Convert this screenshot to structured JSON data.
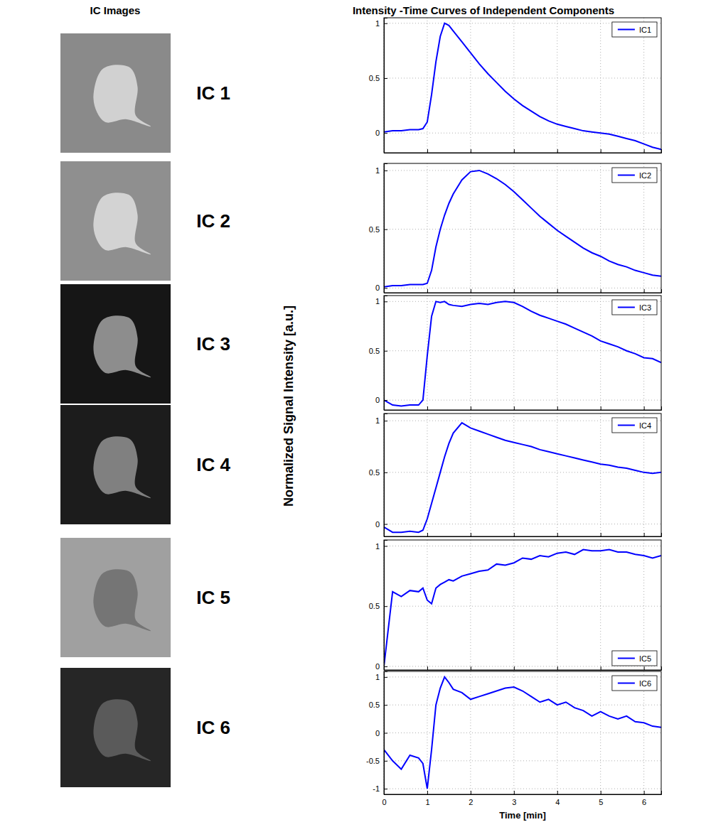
{
  "figure": {
    "left_title": "IC Images",
    "right_title": "Intensity -Time Curves of Independent Components",
    "panel_labels": [
      "IC 1",
      "IC 2",
      "IC 3",
      "IC 4",
      "IC 5",
      "IC 6"
    ],
    "ylabel": "Normalized Signal Intensity [a.u.]",
    "xlabel": "Time [min]"
  },
  "chart_data": [
    {
      "type": "line",
      "x": [
        0,
        0.2,
        0.4,
        0.6,
        0.8,
        0.9,
        1.0,
        1.1,
        1.2,
        1.3,
        1.4,
        1.5,
        1.6,
        1.8,
        2.0,
        2.2,
        2.4,
        2.6,
        2.8,
        3.0,
        3.2,
        3.4,
        3.6,
        3.8,
        4.0,
        4.2,
        4.4,
        4.6,
        4.8,
        5.0,
        5.2,
        5.4,
        5.6,
        5.8,
        6.0,
        6.2,
        6.4
      ],
      "series": [
        {
          "name": "IC1",
          "color": "#0000ff",
          "values": [
            0.01,
            0.02,
            0.02,
            0.03,
            0.03,
            0.04,
            0.1,
            0.35,
            0.65,
            0.88,
            1.0,
            0.98,
            0.93,
            0.83,
            0.73,
            0.63,
            0.54,
            0.46,
            0.38,
            0.31,
            0.25,
            0.2,
            0.15,
            0.11,
            0.08,
            0.06,
            0.04,
            0.02,
            0.01,
            0,
            -0.01,
            -0.03,
            -0.05,
            -0.07,
            -0.1,
            -0.13,
            -0.15
          ]
        }
      ],
      "xlim": [
        0,
        6.4
      ],
      "xticks": [
        0,
        1,
        2,
        3,
        4,
        5,
        6
      ],
      "ylim": [
        -0.18,
        1.05
      ],
      "yticks": [
        0,
        0.5,
        1
      ],
      "grid": true,
      "legend": "upper right",
      "tick_labels": "y"
    },
    {
      "type": "line",
      "x": [
        0,
        0.2,
        0.4,
        0.6,
        0.8,
        0.9,
        1.0,
        1.1,
        1.2,
        1.3,
        1.4,
        1.5,
        1.6,
        1.8,
        2.0,
        2.2,
        2.4,
        2.6,
        2.8,
        3.0,
        3.2,
        3.4,
        3.6,
        3.8,
        4.0,
        4.2,
        4.4,
        4.6,
        4.8,
        5.0,
        5.2,
        5.4,
        5.6,
        5.8,
        6.0,
        6.2,
        6.4
      ],
      "series": [
        {
          "name": "IC2",
          "color": "#0000ff",
          "values": [
            0.01,
            0.02,
            0.02,
            0.03,
            0.03,
            0.03,
            0.04,
            0.15,
            0.35,
            0.5,
            0.62,
            0.72,
            0.8,
            0.92,
            0.99,
            1.0,
            0.97,
            0.93,
            0.88,
            0.82,
            0.75,
            0.68,
            0.61,
            0.55,
            0.49,
            0.44,
            0.39,
            0.34,
            0.3,
            0.27,
            0.23,
            0.2,
            0.18,
            0.15,
            0.13,
            0.11,
            0.1
          ]
        }
      ],
      "xlim": [
        0,
        6.4
      ],
      "xticks": [
        0,
        1,
        2,
        3,
        4,
        5,
        6
      ],
      "ylim": [
        -0.04,
        1.06
      ],
      "yticks": [
        0,
        0.5,
        1
      ],
      "grid": true,
      "legend": "upper right",
      "tick_labels": "y"
    },
    {
      "type": "line",
      "x": [
        0,
        0.2,
        0.4,
        0.6,
        0.8,
        0.9,
        1.0,
        1.1,
        1.2,
        1.3,
        1.4,
        1.5,
        1.6,
        1.8,
        2.0,
        2.2,
        2.4,
        2.6,
        2.8,
        3.0,
        3.2,
        3.4,
        3.6,
        3.8,
        4.0,
        4.2,
        4.4,
        4.6,
        4.8,
        5.0,
        5.2,
        5.4,
        5.6,
        5.8,
        6.0,
        6.2,
        6.4
      ],
      "series": [
        {
          "name": "IC3",
          "color": "#0000ff",
          "values": [
            0.0,
            -0.05,
            -0.06,
            -0.05,
            -0.05,
            0.0,
            0.45,
            0.85,
            1.0,
            0.99,
            1.0,
            0.97,
            0.96,
            0.95,
            0.97,
            0.98,
            0.97,
            0.99,
            1.0,
            0.99,
            0.95,
            0.9,
            0.86,
            0.83,
            0.8,
            0.77,
            0.73,
            0.69,
            0.65,
            0.6,
            0.57,
            0.54,
            0.5,
            0.47,
            0.43,
            0.42,
            0.38
          ]
        }
      ],
      "xlim": [
        0,
        6.4
      ],
      "xticks": [
        0,
        1,
        2,
        3,
        4,
        5,
        6
      ],
      "ylim": [
        -0.1,
        1.06
      ],
      "yticks": [
        0,
        0.5,
        1
      ],
      "grid": true,
      "legend": "upper right",
      "tick_labels": "y"
    },
    {
      "type": "line",
      "x": [
        0,
        0.2,
        0.4,
        0.6,
        0.8,
        0.9,
        1.0,
        1.1,
        1.2,
        1.3,
        1.4,
        1.5,
        1.6,
        1.8,
        2.0,
        2.2,
        2.4,
        2.6,
        2.8,
        3.0,
        3.2,
        3.4,
        3.6,
        3.8,
        4.0,
        4.2,
        4.4,
        4.6,
        4.8,
        5.0,
        5.2,
        5.4,
        5.6,
        5.8,
        6.0,
        6.2,
        6.4
      ],
      "series": [
        {
          "name": "IC4",
          "color": "#0000ff",
          "values": [
            -0.03,
            -0.08,
            -0.08,
            -0.07,
            -0.08,
            -0.06,
            0.05,
            0.2,
            0.35,
            0.5,
            0.65,
            0.78,
            0.88,
            0.98,
            0.93,
            0.9,
            0.87,
            0.84,
            0.81,
            0.79,
            0.77,
            0.75,
            0.72,
            0.7,
            0.68,
            0.66,
            0.64,
            0.62,
            0.6,
            0.58,
            0.57,
            0.55,
            0.54,
            0.52,
            0.5,
            0.49,
            0.5
          ]
        }
      ],
      "xlim": [
        0,
        6.4
      ],
      "xticks": [
        0,
        1,
        2,
        3,
        4,
        5,
        6
      ],
      "ylim": [
        -0.12,
        1.07
      ],
      "yticks": [
        0,
        0.5,
        1
      ],
      "grid": true,
      "legend": "upper right",
      "tick_labels": "y"
    },
    {
      "type": "line",
      "x": [
        0,
        0.2,
        0.4,
        0.6,
        0.8,
        0.9,
        1.0,
        1.1,
        1.2,
        1.3,
        1.4,
        1.5,
        1.6,
        1.8,
        2.0,
        2.2,
        2.4,
        2.6,
        2.8,
        3.0,
        3.2,
        3.4,
        3.6,
        3.8,
        4.0,
        4.2,
        4.4,
        4.6,
        4.8,
        5.0,
        5.2,
        5.4,
        5.6,
        5.8,
        6.0,
        6.2,
        6.4
      ],
      "series": [
        {
          "name": "IC5",
          "color": "#0000ff",
          "values": [
            0.0,
            0.62,
            0.58,
            0.63,
            0.62,
            0.65,
            0.55,
            0.52,
            0.65,
            0.68,
            0.7,
            0.72,
            0.71,
            0.75,
            0.77,
            0.79,
            0.8,
            0.85,
            0.84,
            0.86,
            0.9,
            0.89,
            0.92,
            0.91,
            0.94,
            0.95,
            0.93,
            0.97,
            0.96,
            0.96,
            0.97,
            0.95,
            0.95,
            0.93,
            0.92,
            0.9,
            0.92
          ]
        }
      ],
      "xlim": [
        0,
        6.4
      ],
      "xticks": [
        0,
        1,
        2,
        3,
        4,
        5,
        6
      ],
      "ylim": [
        -0.03,
        1.05
      ],
      "yticks": [
        0,
        0.5,
        1
      ],
      "grid": true,
      "legend": "lower right",
      "tick_labels": "y"
    },
    {
      "type": "line",
      "x": [
        0,
        0.2,
        0.4,
        0.6,
        0.8,
        0.9,
        1.0,
        1.1,
        1.2,
        1.3,
        1.4,
        1.5,
        1.6,
        1.8,
        2.0,
        2.2,
        2.4,
        2.6,
        2.8,
        3.0,
        3.2,
        3.4,
        3.6,
        3.8,
        4.0,
        4.2,
        4.4,
        4.6,
        4.8,
        5.0,
        5.2,
        5.4,
        5.6,
        5.8,
        6.0,
        6.2,
        6.4
      ],
      "series": [
        {
          "name": "IC6",
          "color": "#0000ff",
          "values": [
            -0.3,
            -0.5,
            -0.65,
            -0.4,
            -0.45,
            -0.55,
            -1.0,
            -0.3,
            0.5,
            0.8,
            1.0,
            0.9,
            0.78,
            0.72,
            0.6,
            0.65,
            0.7,
            0.75,
            0.8,
            0.82,
            0.75,
            0.65,
            0.55,
            0.6,
            0.5,
            0.55,
            0.45,
            0.4,
            0.3,
            0.38,
            0.3,
            0.25,
            0.3,
            0.2,
            0.18,
            0.12,
            0.1
          ]
        }
      ],
      "xlim": [
        0,
        6.4
      ],
      "xticks": [
        0,
        1,
        2,
        3,
        4,
        5,
        6
      ],
      "ylim": [
        -1.1,
        1.1
      ],
      "yticks": [
        -1,
        -0.5,
        0,
        0.5,
        1
      ],
      "grid": true,
      "legend": "upper right",
      "tick_labels": true
    }
  ]
}
